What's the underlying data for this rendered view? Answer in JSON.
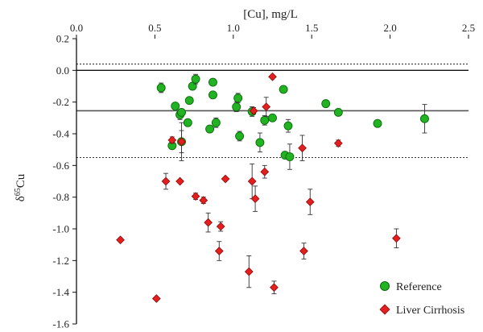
{
  "chart_data": {
    "type": "scatter",
    "title": "",
    "xlabel": "[Cu], mg/L",
    "ylabel": "δ65Cu",
    "xlim": [
      0,
      2.5
    ],
    "ylim": [
      -1.6,
      0.2
    ],
    "x_ticks": [
      "0.0",
      "0.5",
      "1.0",
      "1.5",
      "2.0",
      "2.5"
    ],
    "y_ticks": [
      "0.2",
      "0.0",
      "-0.2",
      "-0.4",
      "-0.6",
      "-0.8",
      "-1.0",
      "-1.2",
      "-1.4",
      "-1.6"
    ],
    "x_axis_position": "top",
    "reference_lines": [
      {
        "y": 0.04,
        "style": "dotted"
      },
      {
        "y": -0.255,
        "style": "solid"
      },
      {
        "y": -0.55,
        "style": "dotted"
      }
    ],
    "legend": {
      "position": "bottom-right"
    },
    "series": [
      {
        "name": "Reference",
        "marker": "circle",
        "color": "#22b322",
        "points": [
          {
            "x": 0.54,
            "y": -0.11,
            "err": 0.03
          },
          {
            "x": 0.61,
            "y": -0.475,
            "err": 0.02
          },
          {
            "x": 0.63,
            "y": -0.225,
            "err": 0.02
          },
          {
            "x": 0.66,
            "y": -0.28,
            "err": 0.03
          },
          {
            "x": 0.67,
            "y": -0.265,
            "err": 0.02
          },
          {
            "x": 0.67,
            "y": -0.45,
            "err": 0.12
          },
          {
            "x": 0.71,
            "y": -0.33,
            "err": 0.02
          },
          {
            "x": 0.72,
            "y": -0.19,
            "err": 0.02
          },
          {
            "x": 0.74,
            "y": -0.1,
            "err": 0.02
          },
          {
            "x": 0.76,
            "y": -0.055,
            "err": 0.03
          },
          {
            "x": 0.85,
            "y": -0.37,
            "err": 0.02
          },
          {
            "x": 0.87,
            "y": -0.075,
            "err": 0.02
          },
          {
            "x": 0.87,
            "y": -0.155,
            "err": 0.02
          },
          {
            "x": 0.89,
            "y": -0.33,
            "err": 0.03
          },
          {
            "x": 1.02,
            "y": -0.23,
            "err": 0.03
          },
          {
            "x": 1.03,
            "y": -0.175,
            "err": 0.03
          },
          {
            "x": 1.04,
            "y": -0.415,
            "err": 0.03
          },
          {
            "x": 1.12,
            "y": -0.26,
            "err": 0.03
          },
          {
            "x": 1.17,
            "y": -0.455,
            "err": 0.06
          },
          {
            "x": 1.2,
            "y": -0.315,
            "err": 0.03
          },
          {
            "x": 1.25,
            "y": -0.3,
            "err": 0.02
          },
          {
            "x": 1.32,
            "y": -0.12,
            "err": 0.02
          },
          {
            "x": 1.33,
            "y": -0.535,
            "err": 0.02
          },
          {
            "x": 1.35,
            "y": -0.35,
            "err": 0.04
          },
          {
            "x": 1.36,
            "y": -0.545,
            "err": 0.08
          },
          {
            "x": 1.59,
            "y": -0.21,
            "err": 0.01
          },
          {
            "x": 1.67,
            "y": -0.265,
            "err": 0.01
          },
          {
            "x": 1.92,
            "y": -0.335,
            "err": 0.01
          },
          {
            "x": 2.22,
            "y": -0.305,
            "err": 0.09
          }
        ]
      },
      {
        "name": "Liver Cirrhosis",
        "marker": "diamond",
        "color": "#e41f1f",
        "points": [
          {
            "x": 0.28,
            "y": -1.07,
            "err": 0
          },
          {
            "x": 0.51,
            "y": -1.44,
            "err": 0
          },
          {
            "x": 0.57,
            "y": -0.7,
            "err": 0.05
          },
          {
            "x": 0.61,
            "y": -0.44,
            "err": 0.02
          },
          {
            "x": 0.66,
            "y": -0.7,
            "err": 0
          },
          {
            "x": 0.67,
            "y": -0.45,
            "err": 0.07
          },
          {
            "x": 0.76,
            "y": -0.795,
            "err": 0.02
          },
          {
            "x": 0.81,
            "y": -0.82,
            "err": 0.02
          },
          {
            "x": 0.84,
            "y": -0.96,
            "err": 0.06
          },
          {
            "x": 0.91,
            "y": -1.14,
            "err": 0.06
          },
          {
            "x": 0.92,
            "y": -0.985,
            "err": 0.03
          },
          {
            "x": 0.95,
            "y": -0.685,
            "err": 0
          },
          {
            "x": 1.1,
            "y": -1.27,
            "err": 0.1
          },
          {
            "x": 1.12,
            "y": -0.7,
            "err": 0.11
          },
          {
            "x": 1.13,
            "y": -0.255,
            "err": 0.02
          },
          {
            "x": 1.14,
            "y": -0.81,
            "err": 0.08
          },
          {
            "x": 1.2,
            "y": -0.64,
            "err": 0.04
          },
          {
            "x": 1.21,
            "y": -0.23,
            "err": 0.06
          },
          {
            "x": 1.25,
            "y": -0.04,
            "err": 0
          },
          {
            "x": 1.26,
            "y": -1.37,
            "err": 0.04
          },
          {
            "x": 1.44,
            "y": -0.49,
            "err": 0.08
          },
          {
            "x": 1.45,
            "y": -1.14,
            "err": 0.05
          },
          {
            "x": 1.49,
            "y": -0.83,
            "err": 0.08
          },
          {
            "x": 1.67,
            "y": -0.46,
            "err": 0.02
          },
          {
            "x": 2.04,
            "y": -1.06,
            "err": 0.06
          }
        ]
      }
    ]
  }
}
